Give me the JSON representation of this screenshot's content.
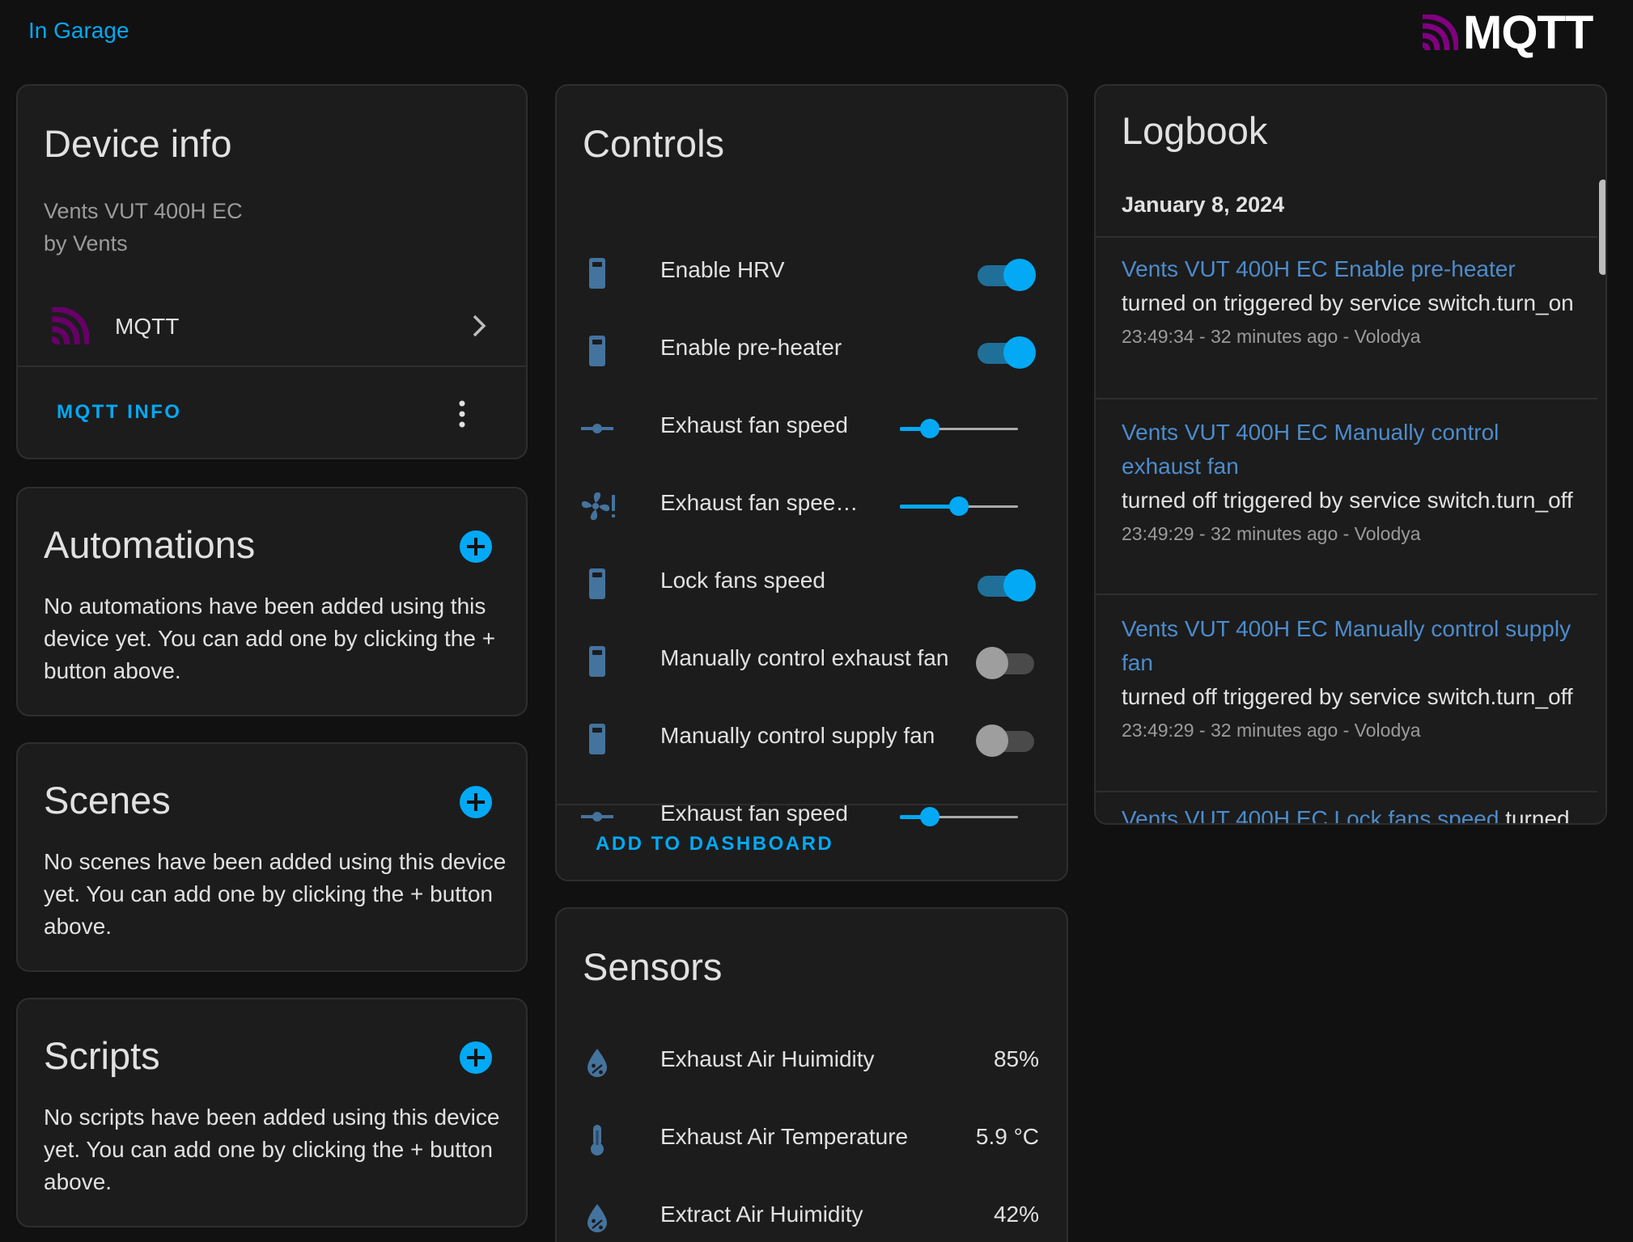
{
  "header": {
    "area_link": "In Garage",
    "brand": "MQTT"
  },
  "colors": {
    "accent": "#03a9f4",
    "card_bg": "#1c1c1c",
    "page_bg": "#111111",
    "mqtt_purple": "#660066",
    "icon_blue": "#44739e"
  },
  "device_info": {
    "title": "Device info",
    "model": "Vents VUT 400H EC",
    "manufacturer": "by Vents",
    "integration_label": "MQTT",
    "action_label": "MQTT INFO"
  },
  "automations": {
    "title": "Automations",
    "empty_text": "No automations have been added using this device yet. You can add one by clicking the + button above."
  },
  "scenes": {
    "title": "Scenes",
    "empty_text": "No scenes have been added using this device yet. You can add one by clicking the + button above."
  },
  "scripts": {
    "title": "Scripts",
    "empty_text": "No scripts have been added using this device yet. You can add one by clicking the + button above."
  },
  "controls": {
    "title": "Controls",
    "rows": [
      {
        "label": "Enable HRV",
        "icon": "switch-icon",
        "kind": "toggle",
        "on": true
      },
      {
        "label": "Enable pre-heater",
        "icon": "switch-icon",
        "kind": "toggle",
        "on": true
      },
      {
        "label": "Exhaust fan speed",
        "icon": "slider-icon",
        "kind": "slider",
        "value": 0.25
      },
      {
        "label": "Exhaust fan spee…",
        "icon": "fan-alert-icon",
        "kind": "slider",
        "value": 0.5
      },
      {
        "label": "Lock fans speed",
        "icon": "switch-icon",
        "kind": "toggle",
        "on": true
      },
      {
        "label": "Manually control exhaust fan",
        "icon": "switch-icon",
        "kind": "toggle",
        "on": false
      },
      {
        "label": "Manually control supply fan",
        "icon": "switch-icon",
        "kind": "toggle",
        "on": false
      },
      {
        "label": "Exhaust fan speed",
        "icon": "slider-icon",
        "kind": "slider",
        "value": 0.25
      }
    ],
    "action_label": "ADD TO DASHBOARD"
  },
  "sensors": {
    "title": "Sensors",
    "rows": [
      {
        "label": "Exhaust Air Huimidity",
        "value": "85%",
        "icon": "humidity-icon"
      },
      {
        "label": "Exhaust Air Temperature",
        "value": "5.9 °C",
        "icon": "thermometer-icon"
      },
      {
        "label": "Extract Air Huimidity",
        "value": "42%",
        "icon": "humidity-icon"
      }
    ]
  },
  "logbook": {
    "title": "Logbook",
    "date": "January 8, 2024",
    "entries": [
      {
        "entity": "Vents VUT 400H EC Enable pre-heater",
        "message": "turned on triggered by service switch.turn_on",
        "meta": "23:49:34 - 32 minutes ago - Volodya"
      },
      {
        "entity": "Vents VUT 400H EC Manually control exhaust fan",
        "message": "turned off triggered by service switch.turn_off",
        "meta": "23:49:29 - 32 minutes ago - Volodya"
      },
      {
        "entity": "Vents VUT 400H EC Manually control supply fan",
        "message": "turned off triggered by service switch.turn_off",
        "meta": "23:49:29 - 32 minutes ago - Volodya"
      },
      {
        "entity": "Vents VUT 400H EC Lock fans speed",
        "message": "turned",
        "meta": ""
      }
    ]
  }
}
